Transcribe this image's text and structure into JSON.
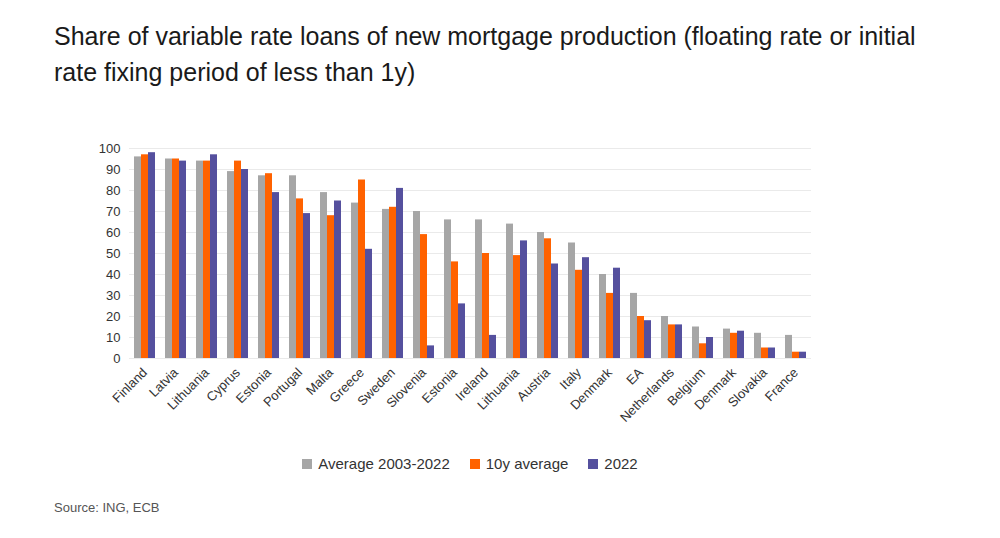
{
  "chart_data": {
    "type": "bar",
    "title": "Share of variable rate loans of new mortgage production (floating rate or initial rate fixing period of less than 1y)",
    "source": "Source: ING, ECB",
    "categories": [
      "Finland",
      "Latvia",
      "Lithuania",
      "Cyprus",
      "Estonia",
      "Portugal",
      "Malta",
      "Greece",
      "Sweden",
      "Slovenia",
      "Estonia",
      "Ireland",
      "Lithuania",
      "Austria",
      "Italy",
      "Denmark",
      "EA",
      "Netherlands",
      "Belgium",
      "Denmark",
      "Slovakia",
      "France"
    ],
    "series": [
      {
        "name": "Average 2003-2022",
        "color": "#a6a6a6",
        "values": [
          96,
          95,
          94,
          89,
          87,
          87,
          79,
          74,
          71,
          70,
          66,
          66,
          64,
          60,
          55,
          40,
          31,
          20,
          15,
          14,
          12,
          11
        ]
      },
      {
        "name": "10y average",
        "color": "#ff6200",
        "values": [
          97,
          95,
          94,
          94,
          88,
          76,
          68,
          85,
          72,
          59,
          46,
          50,
          49,
          57,
          42,
          31,
          20,
          16,
          7,
          12,
          5,
          3
        ]
      },
      {
        "name": "2022",
        "color": "#55509e",
        "values": [
          98,
          94,
          97,
          90,
          79,
          69,
          75,
          52,
          81,
          6,
          26,
          11,
          56,
          45,
          48,
          43,
          18,
          16,
          10,
          13,
          5,
          3
        ]
      }
    ],
    "ylim": [
      0,
      100
    ],
    "yticks": [
      0,
      10,
      20,
      30,
      40,
      50,
      60,
      70,
      80,
      90,
      100
    ],
    "grid": true,
    "legend": "bottom"
  }
}
